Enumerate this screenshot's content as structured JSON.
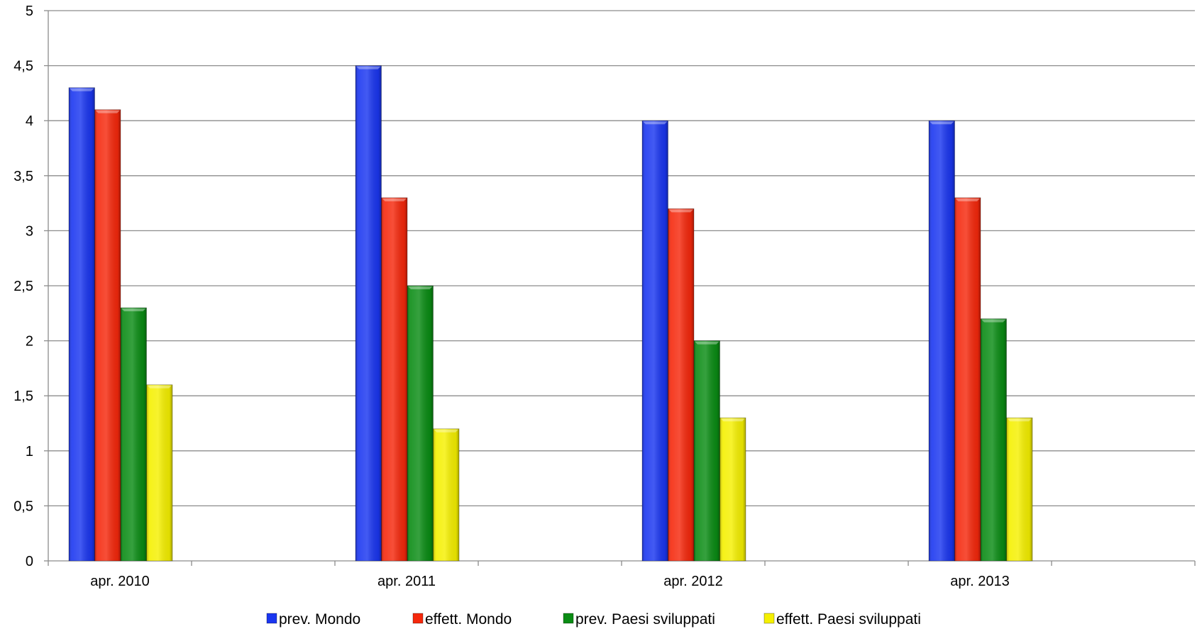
{
  "chart_data": {
    "type": "bar",
    "title": "",
    "xlabel": "",
    "ylabel": "",
    "ylim": [
      0,
      5
    ],
    "y_tick_step": 0.5,
    "y_tick_labels": [
      "0",
      "0,5",
      "1",
      "1,5",
      "2",
      "2,5",
      "3",
      "3,5",
      "4",
      "4,5",
      "5"
    ],
    "categories": [
      "apr. 2010",
      "apr. 2011",
      "apr. 2012",
      "apr. 2013"
    ],
    "category_slots": 8,
    "grid": true,
    "legend_position": "bottom",
    "series": [
      {
        "name": "prev. Mondo",
        "color": "#1a36f0",
        "values": [
          4.3,
          4.5,
          4.0,
          4.0
        ]
      },
      {
        "name": "effett. Mondo",
        "color": "#f5280c",
        "values": [
          4.1,
          3.3,
          3.2,
          3.3
        ]
      },
      {
        "name": "prev. Paesi sviluppati",
        "color": "#0a8c14",
        "values": [
          2.3,
          2.5,
          2.0,
          2.2
        ]
      },
      {
        "name": "effett. Paesi sviluppati",
        "color": "#f5f000",
        "values": [
          1.6,
          1.2,
          1.3,
          1.3
        ]
      }
    ]
  }
}
